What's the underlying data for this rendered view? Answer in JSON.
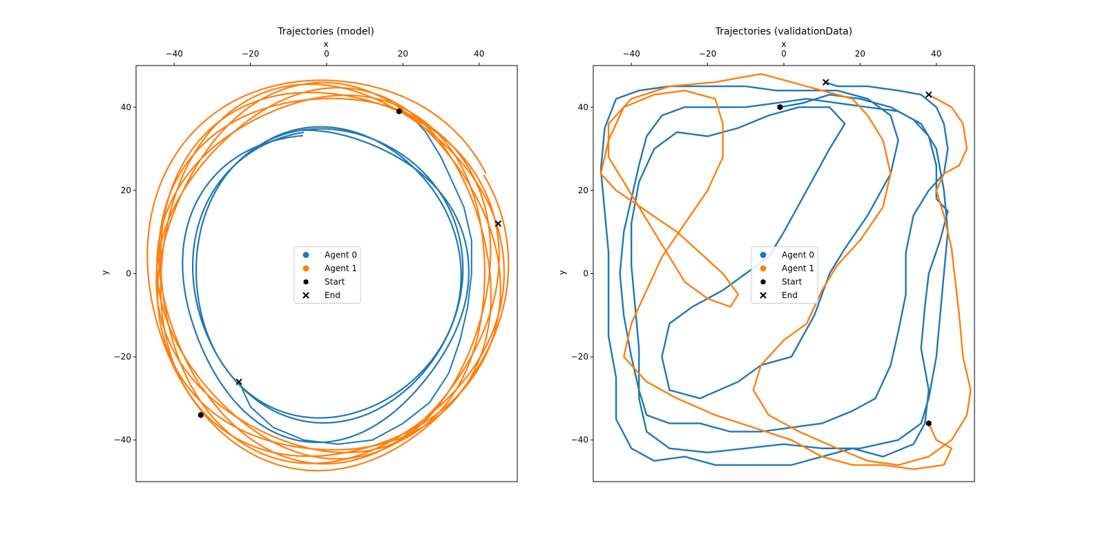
{
  "chart_data": [
    {
      "type": "scatter",
      "title": "Trajectories (model)",
      "xlabel": "x",
      "ylabel": "y",
      "xlim": [
        -50,
        50
      ],
      "ylim": [
        -50,
        50
      ],
      "xticks": [
        -40,
        -20,
        0,
        20,
        40
      ],
      "yticks": [
        40,
        20,
        0,
        -20,
        -40
      ],
      "xtick_labels": [
        "−40",
        "−20",
        "0",
        "20",
        "40"
      ],
      "ytick_labels": [
        "40",
        "20",
        "0",
        "−20",
        "−40"
      ],
      "x_axis_position": "top",
      "grid": false,
      "legend_position": "center",
      "legend": [
        "Agent 0",
        "Agent 1",
        "Start",
        "End"
      ],
      "series": [
        {
          "name": "Agent 0",
          "color": "#1f77b4",
          "loops": [
            {
              "cx": 0,
              "cy": 0,
              "r": 35,
              "turns": 2.05,
              "start_angle": 100,
              "wobble": 0.6
            },
            {
              "cx": 0,
              "cy": -2,
              "r": 37,
              "turns": 1,
              "start_angle": 100,
              "wobble": 1.5
            }
          ],
          "tail": [
            [
              19,
              39
            ],
            [
              22,
              38
            ],
            [
              26,
              34
            ],
            [
              30,
              28
            ],
            [
              33,
              22
            ],
            [
              36,
              16
            ],
            [
              38,
              8
            ],
            [
              38,
              0
            ],
            [
              37,
              -8
            ],
            [
              35,
              -16
            ],
            [
              32,
              -24
            ],
            [
              27,
              -31
            ],
            [
              20,
              -36
            ],
            [
              12,
              -40
            ],
            [
              3,
              -41
            ],
            [
              -6,
              -40
            ],
            [
              -14,
              -37
            ],
            [
              -20,
              -32
            ],
            [
              -23,
              -26
            ]
          ]
        },
        {
          "name": "Agent 1",
          "color": "#ff7f0e",
          "loops": [
            {
              "cx": 0,
              "cy": 0,
              "r": 44,
              "turns": 6,
              "start_angle": 220,
              "wobble": 1.6
            },
            {
              "cx": 0,
              "cy": 0,
              "r": 47,
              "turns": 1,
              "start_angle": 30,
              "wobble": 1.2
            }
          ]
        }
      ],
      "markers": [
        {
          "label": "Start",
          "agent": "Agent 0",
          "x": 19,
          "y": 39
        },
        {
          "label": "End",
          "agent": "Agent 0",
          "x": -23,
          "y": -26
        },
        {
          "label": "Start",
          "agent": "Agent 1",
          "x": -33,
          "y": -34
        },
        {
          "label": "End",
          "agent": "Agent 1",
          "x": 45,
          "y": 12
        }
      ]
    },
    {
      "type": "scatter",
      "title": "Trajectories (validationData)",
      "xlabel": "x",
      "ylabel": "y",
      "xlim": [
        -50,
        50
      ],
      "ylim": [
        -50,
        50
      ],
      "xticks": [
        -40,
        -20,
        0,
        20,
        40
      ],
      "yticks": [
        40,
        20,
        0,
        -20,
        -40
      ],
      "xtick_labels": [
        "−40",
        "−20",
        "0",
        "20",
        "40"
      ],
      "ytick_labels": [
        "40",
        "20",
        "0",
        "−20",
        "−40"
      ],
      "x_axis_position": "top",
      "grid": false,
      "legend_position": "center",
      "legend": [
        "Agent 0",
        "Agent 1",
        "Start",
        "End"
      ],
      "series": [
        {
          "name": "Agent 0",
          "color": "#1f77b4",
          "path": [
            [
              -1,
              40
            ],
            [
              5,
              41
            ],
            [
              12,
              43
            ],
            [
              20,
              42
            ],
            [
              28,
              40
            ],
            [
              34,
              37
            ],
            [
              38,
              33
            ],
            [
              40,
              26
            ],
            [
              40,
              18
            ],
            [
              43,
              15
            ],
            [
              41,
              8
            ],
            [
              38,
              0
            ],
            [
              37,
              -8
            ],
            [
              36,
              -18
            ],
            [
              38,
              -28
            ],
            [
              37,
              -36
            ],
            [
              34,
              -41
            ],
            [
              26,
              -44
            ],
            [
              18,
              -42
            ],
            [
              10,
              -44
            ],
            [
              2,
              -46
            ],
            [
              -8,
              -46
            ],
            [
              -18,
              -46
            ],
            [
              -26,
              -44
            ],
            [
              -34,
              -45
            ],
            [
              -40,
              -42
            ],
            [
              -44,
              -35
            ],
            [
              -44,
              -25
            ],
            [
              -46,
              -15
            ],
            [
              -46,
              -5
            ],
            [
              -46,
              5
            ],
            [
              -47,
              15
            ],
            [
              -48,
              25
            ],
            [
              -47,
              35
            ],
            [
              -44,
              42
            ],
            [
              -38,
              44
            ],
            [
              -30,
              45
            ],
            [
              -20,
              45
            ],
            [
              -10,
              45
            ],
            [
              -2,
              44
            ],
            [
              6,
              44
            ],
            [
              14,
              44
            ],
            [
              22,
              42
            ],
            [
              28,
              38
            ],
            [
              30,
              32
            ],
            [
              28,
              24
            ],
            [
              22,
              14
            ],
            [
              16,
              6
            ],
            [
              12,
              0
            ],
            [
              8,
              -10
            ],
            [
              2,
              -20
            ],
            [
              -6,
              -22
            ],
            [
              -12,
              -26
            ],
            [
              -22,
              -30
            ],
            [
              -30,
              -28
            ],
            [
              -32,
              -20
            ],
            [
              -30,
              -12
            ],
            [
              -24,
              -8
            ],
            [
              -16,
              -4
            ],
            [
              -10,
              0
            ],
            [
              -4,
              4
            ],
            [
              0,
              10
            ],
            [
              6,
              20
            ],
            [
              12,
              30
            ],
            [
              16,
              36
            ],
            [
              12,
              40
            ],
            [
              4,
              40
            ],
            [
              -4,
              38
            ],
            [
              -12,
              35
            ],
            [
              -20,
              33
            ],
            [
              -28,
              34
            ],
            [
              -34,
              30
            ],
            [
              -38,
              22
            ],
            [
              -40,
              12
            ],
            [
              -40,
              2
            ],
            [
              -39,
              -8
            ],
            [
              -38,
              -18
            ],
            [
              -38,
              -30
            ],
            [
              -36,
              -38
            ],
            [
              -30,
              -42
            ],
            [
              -20,
              -43
            ],
            [
              -10,
              -42
            ],
            [
              0,
              -41
            ],
            [
              10,
              -42
            ],
            [
              20,
              -42
            ],
            [
              30,
              -40
            ],
            [
              36,
              -36
            ],
            [
              38,
              -30
            ],
            [
              40,
              -20
            ],
            [
              41,
              -10
            ],
            [
              42,
              0
            ],
            [
              43,
              10
            ],
            [
              42,
              20
            ],
            [
              40,
              30
            ],
            [
              36,
              36
            ],
            [
              30,
              39
            ],
            [
              22,
              40
            ],
            [
              14,
              41
            ],
            [
              6,
              42
            ],
            [
              -2,
              41
            ],
            [
              -10,
              40
            ],
            [
              -18,
              40
            ],
            [
              -26,
              40
            ],
            [
              -32,
              38
            ],
            [
              -36,
              33
            ],
            [
              -38,
              26
            ],
            [
              -40,
              18
            ],
            [
              -42,
              10
            ],
            [
              -43,
              0
            ],
            [
              -42,
              -10
            ],
            [
              -40,
              -20
            ],
            [
              -38,
              -28
            ],
            [
              -36,
              -34
            ],
            [
              -30,
              -36
            ],
            [
              -22,
              -36
            ],
            [
              -14,
              -38
            ],
            [
              -6,
              -38
            ],
            [
              2,
              -37
            ],
            [
              10,
              -36
            ],
            [
              18,
              -33
            ],
            [
              24,
              -30
            ],
            [
              28,
              -22
            ],
            [
              30,
              -14
            ],
            [
              32,
              -5
            ],
            [
              32,
              5
            ],
            [
              34,
              14
            ],
            [
              38,
              20
            ],
            [
              42,
              24
            ],
            [
              43,
              30
            ],
            [
              42,
              36
            ],
            [
              40,
              40
            ],
            [
              36,
              43
            ],
            [
              30,
              44
            ],
            [
              22,
              45
            ],
            [
              14,
              45
            ],
            [
              11,
              46
            ]
          ]
        },
        {
          "name": "Agent 1",
          "color": "#ff7f0e",
          "path": [
            [
              38,
              -36
            ],
            [
              40,
              -40
            ],
            [
              44,
              -42
            ],
            [
              42,
              -46
            ],
            [
              34,
              -47
            ],
            [
              26,
              -46
            ],
            [
              18,
              -46
            ],
            [
              10,
              -44
            ],
            [
              2,
              -40
            ],
            [
              -8,
              -37
            ],
            [
              -18,
              -34
            ],
            [
              -28,
              -30
            ],
            [
              -36,
              -26
            ],
            [
              -42,
              -20
            ],
            [
              -40,
              -12
            ],
            [
              -36,
              -4
            ],
            [
              -32,
              4
            ],
            [
              -26,
              12
            ],
            [
              -20,
              20
            ],
            [
              -16,
              28
            ],
            [
              -16,
              36
            ],
            [
              -18,
              42
            ],
            [
              -26,
              44
            ],
            [
              -34,
              43
            ],
            [
              -42,
              40
            ],
            [
              -46,
              32
            ],
            [
              -48,
              24
            ],
            [
              -44,
              20
            ],
            [
              -36,
              15
            ],
            [
              -28,
              10
            ],
            [
              -22,
              5
            ],
            [
              -16,
              0
            ],
            [
              -12,
              -5
            ],
            [
              -14,
              -8
            ],
            [
              -20,
              -6
            ],
            [
              -26,
              -2
            ],
            [
              -30,
              4
            ],
            [
              -34,
              10
            ],
            [
              -38,
              16
            ],
            [
              -42,
              22
            ],
            [
              -46,
              28
            ],
            [
              -46,
              36
            ],
            [
              -40,
              42
            ],
            [
              -30,
              45
            ],
            [
              -18,
              46
            ],
            [
              -6,
              48
            ],
            [
              2,
              46
            ],
            [
              10,
              44
            ],
            [
              18,
              42
            ],
            [
              22,
              38
            ],
            [
              26,
              32
            ],
            [
              28,
              24
            ],
            [
              26,
              16
            ],
            [
              20,
              8
            ],
            [
              14,
              2
            ],
            [
              10,
              -4
            ],
            [
              6,
              -12
            ],
            [
              0,
              -16
            ],
            [
              -6,
              -22
            ],
            [
              -8,
              -28
            ],
            [
              -4,
              -34
            ],
            [
              4,
              -38
            ],
            [
              14,
              -42
            ],
            [
              22,
              -45
            ],
            [
              30,
              -46
            ],
            [
              38,
              -44
            ],
            [
              44,
              -40
            ],
            [
              48,
              -34
            ],
            [
              49,
              -28
            ],
            [
              47,
              -20
            ],
            [
              46,
              -10
            ],
            [
              45,
              -2
            ],
            [
              44,
              6
            ],
            [
              42,
              14
            ],
            [
              40,
              20
            ],
            [
              42,
              24
            ],
            [
              46,
              26
            ],
            [
              48,
              30
            ],
            [
              47,
              36
            ],
            [
              44,
              40
            ],
            [
              38,
              43
            ]
          ]
        }
      ],
      "markers": [
        {
          "label": "Start",
          "agent": "Agent 0",
          "x": -1,
          "y": 40
        },
        {
          "label": "End",
          "agent": "Agent 0",
          "x": 11,
          "y": 46
        },
        {
          "label": "Start",
          "agent": "Agent 1",
          "x": 38,
          "y": -36
        },
        {
          "label": "End",
          "agent": "Agent 1",
          "x": 38,
          "y": 43
        }
      ]
    }
  ]
}
